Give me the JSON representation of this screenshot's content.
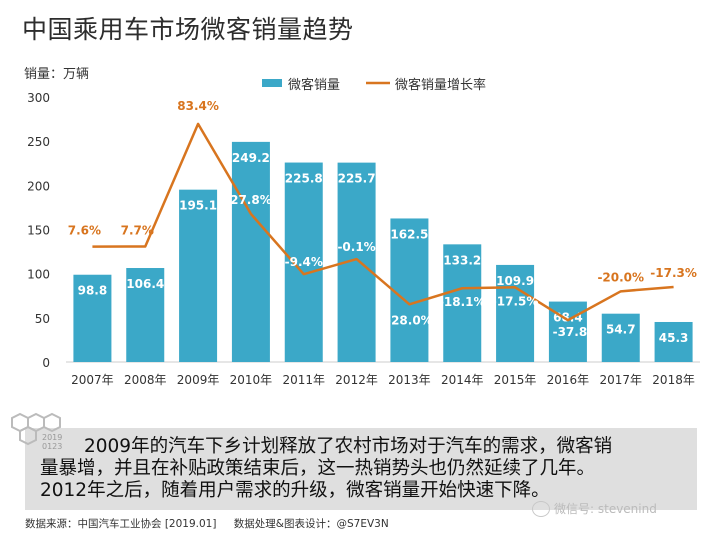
{
  "title": "中国乘用车市场微客销量趋势",
  "chart_data": {
    "type": "bar+line",
    "ylabel": "销量：万辆",
    "ylim": [
      0,
      300
    ],
    "yticks": [
      0,
      50,
      100,
      150,
      200,
      250,
      300
    ],
    "grid": false,
    "legend_position": "top",
    "categories": [
      "2007年",
      "2008年",
      "2009年",
      "2010年",
      "2011年",
      "2012年",
      "2013年",
      "2014年",
      "2015年",
      "2016年",
      "2017年",
      "2018年"
    ],
    "series": [
      {
        "name": "微客销量",
        "type": "bar",
        "color": "#3ba8c8",
        "values": [
          98.8,
          106.4,
          195.1,
          249.2,
          225.8,
          225.7,
          162.5,
          133.2,
          109.9,
          68.4,
          54.7,
          45.3
        ],
        "labels": [
          "98.8",
          "106.4",
          "195.1",
          "249.2",
          "225.8",
          "225.7",
          "162.5",
          "133.2",
          "109.9",
          "68.4",
          "54.7",
          "45.3"
        ]
      },
      {
        "name": "微客销量增长率",
        "type": "line",
        "color": "#d8751f",
        "values": [
          7.6,
          7.7,
          83.4,
          27.8,
          -9.4,
          -0.1,
          -28.0,
          -18.1,
          -17.5,
          -37.8,
          -20.0,
          -17.3
        ],
        "labels": [
          "7.6%",
          "7.7%",
          "83.4%",
          "27.8%",
          "-9.4%",
          "-0.1%",
          "-28.0%",
          "-18.1%",
          "-17.5%",
          "-37.8%",
          "-20.0%",
          "-17.3%"
        ]
      }
    ]
  },
  "logo": {
    "year": "2019",
    "date": "0123"
  },
  "caption": {
    "line1": "2009年的汽车下乡计划释放了农村市场对于汽车的需求，微客销",
    "line2": "量暴增，并且在补贴政策结束后，这一热销势头也仍然延续了几年。",
    "line3": "2012年之后，随着用户需求的升级，微客销量开始快速下降。"
  },
  "footer": {
    "source": "数据来源：中国汽车工业协会 [2019.01]",
    "design": "数据处理&图表设计：@S7EV3N"
  },
  "wechat": "微信号: stevenind"
}
